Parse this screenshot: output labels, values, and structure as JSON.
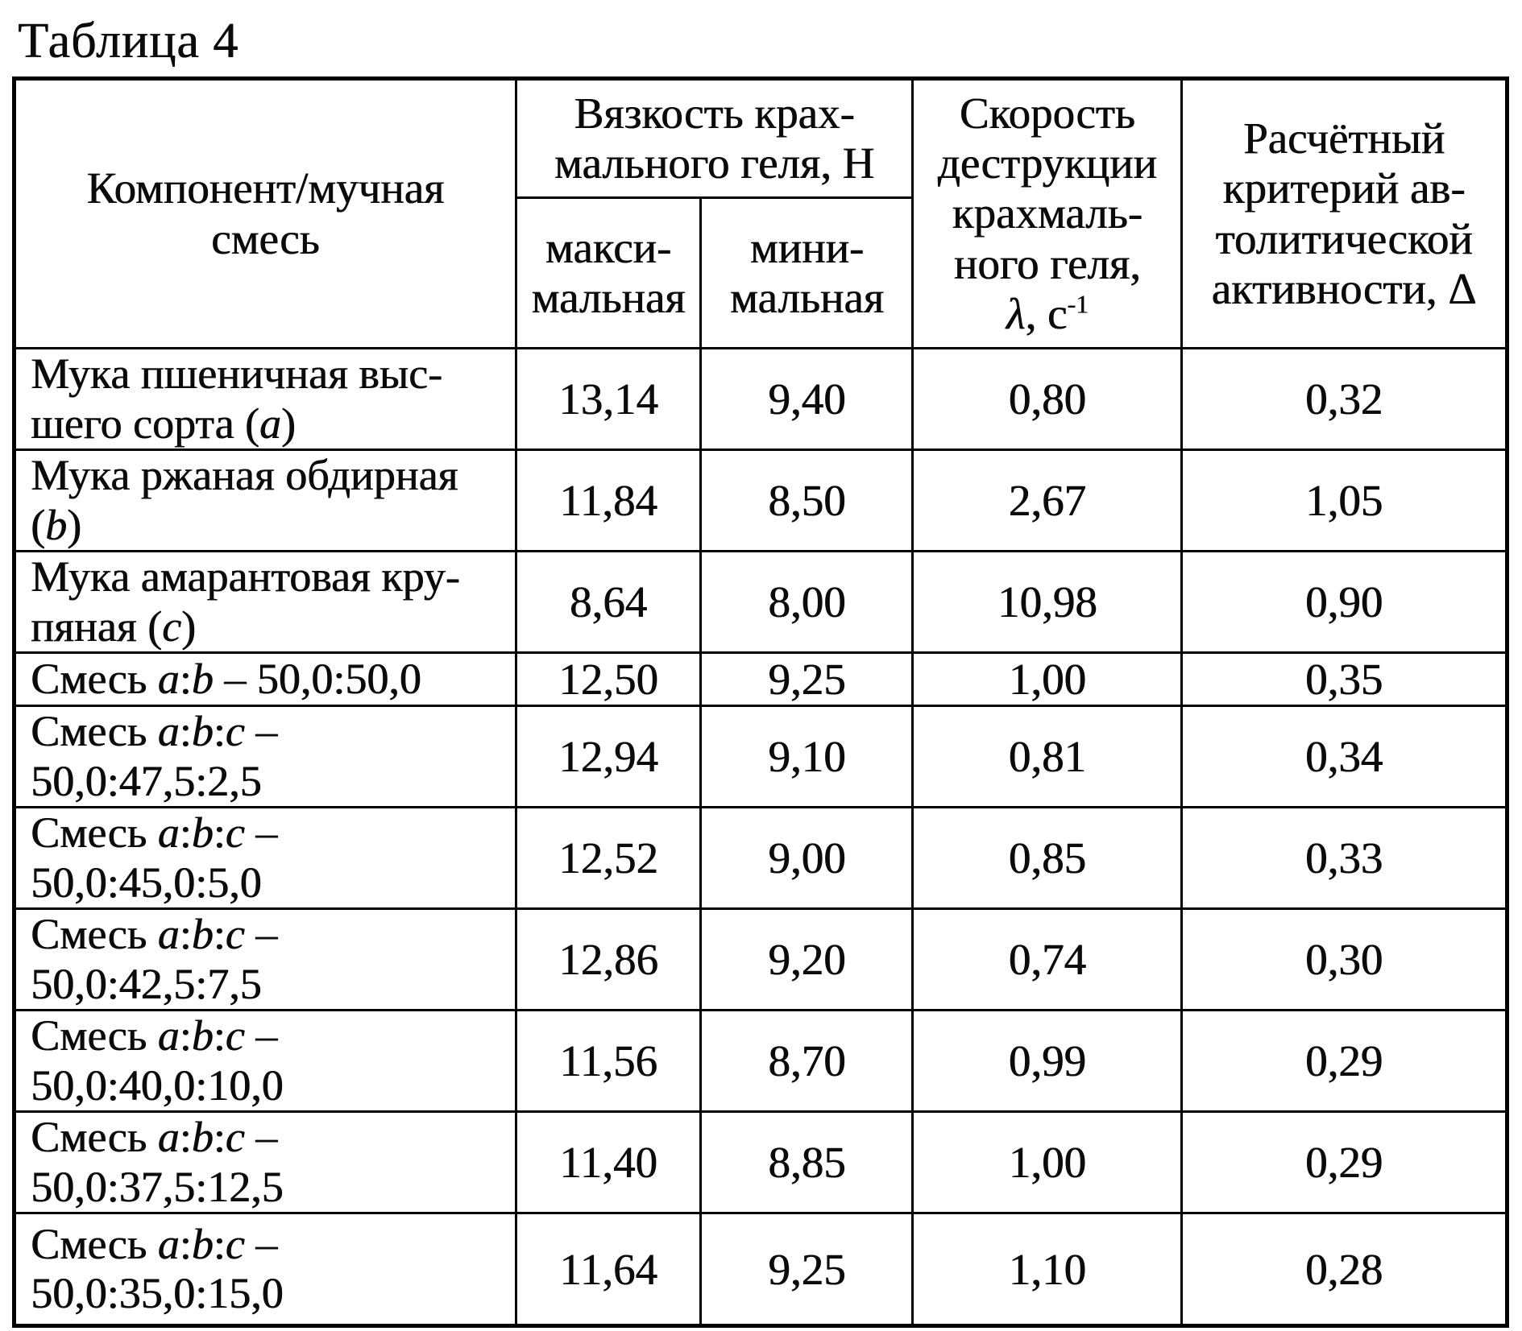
{
  "page_title": "Таблица 4",
  "table": {
    "col_headers": {
      "component": "Компонент/мучная\nсмесь",
      "viscosity_group": "Вязкость крах-\nмального геля, Н",
      "viscosity_max": "макси-\nмальная",
      "viscosity_min": "мини-\nмальная",
      "destruction": [
        {
          "t": "Скорость\nдеструкции\nкрахмаль-\nного геля,\n"
        },
        {
          "t": "λ",
          "i": true
        },
        {
          "t": ", с"
        },
        {
          "t": "-1",
          "sup": true
        }
      ],
      "criterion": "Расчётный\nкритерий ав-\nтолитической\nактивности, Δ"
    },
    "rows": [
      {
        "label": [
          {
            "t": "Мука пшеничная выс-\nшего сорта ("
          },
          {
            "t": "a",
            "i": true
          },
          {
            "t": ")"
          }
        ],
        "visc_max": "13,14",
        "visc_min": "9,40",
        "lambda": "0,80",
        "delta": "0,32"
      },
      {
        "label": [
          {
            "t": "Мука ржаная обдирная\n("
          },
          {
            "t": "b",
            "i": true
          },
          {
            "t": ")"
          }
        ],
        "visc_max": "11,84",
        "visc_min": "8,50",
        "lambda": "2,67",
        "delta": "1,05"
      },
      {
        "label": [
          {
            "t": "Мука амарантовая кру-\nпяная ("
          },
          {
            "t": "c",
            "i": true
          },
          {
            "t": ")"
          }
        ],
        "visc_max": "8,64",
        "visc_min": "8,00",
        "lambda": "10,98",
        "delta": "0,90"
      },
      {
        "label": [
          {
            "t": "Смесь "
          },
          {
            "t": "a",
            "i": true
          },
          {
            "t": ":"
          },
          {
            "t": "b",
            "i": true
          },
          {
            "t": " – 50,0:50,0"
          }
        ],
        "visc_max": "12,50",
        "visc_min": "9,25",
        "lambda": "1,00",
        "delta": "0,35"
      },
      {
        "label": [
          {
            "t": "Смесь "
          },
          {
            "t": "a",
            "i": true
          },
          {
            "t": ":"
          },
          {
            "t": "b",
            "i": true
          },
          {
            "t": ":"
          },
          {
            "t": "c",
            "i": true
          },
          {
            "t": " –\n50,0:47,5:2,5"
          }
        ],
        "visc_max": "12,94",
        "visc_min": "9,10",
        "lambda": "0,81",
        "delta": "0,34"
      },
      {
        "label": [
          {
            "t": "Смесь "
          },
          {
            "t": "a",
            "i": true
          },
          {
            "t": ":"
          },
          {
            "t": "b",
            "i": true
          },
          {
            "t": ":"
          },
          {
            "t": "c",
            "i": true
          },
          {
            "t": " –\n50,0:45,0:5,0"
          }
        ],
        "visc_max": "12,52",
        "visc_min": "9,00",
        "lambda": "0,85",
        "delta": "0,33"
      },
      {
        "label": [
          {
            "t": "Смесь "
          },
          {
            "t": "a",
            "i": true
          },
          {
            "t": ":"
          },
          {
            "t": "b",
            "i": true
          },
          {
            "t": ":"
          },
          {
            "t": "c",
            "i": true
          },
          {
            "t": " –\n50,0:42,5:7,5"
          }
        ],
        "visc_max": "12,86",
        "visc_min": "9,20",
        "lambda": "0,74",
        "delta": "0,30"
      },
      {
        "label": [
          {
            "t": "Смесь "
          },
          {
            "t": "a",
            "i": true
          },
          {
            "t": ":"
          },
          {
            "t": "b",
            "i": true
          },
          {
            "t": ":"
          },
          {
            "t": "c",
            "i": true
          },
          {
            "t": " –\n50,0:40,0:10,0"
          }
        ],
        "visc_max": "11,56",
        "visc_min": "8,70",
        "lambda": "0,99",
        "delta": "0,29"
      },
      {
        "label": [
          {
            "t": "Смесь "
          },
          {
            "t": "a",
            "i": true
          },
          {
            "t": ":"
          },
          {
            "t": "b",
            "i": true
          },
          {
            "t": ":"
          },
          {
            "t": "c",
            "i": true
          },
          {
            "t": " –\n50,0:37,5:12,5"
          }
        ],
        "visc_max": "11,40",
        "visc_min": "8,85",
        "lambda": "1,00",
        "delta": "0,29"
      },
      {
        "label": [
          {
            "t": "Смесь "
          },
          {
            "t": "a",
            "i": true
          },
          {
            "t": ":"
          },
          {
            "t": "b",
            "i": true
          },
          {
            "t": ":"
          },
          {
            "t": "c",
            "i": true
          },
          {
            "t": " –\n50,0:35,0:15,0"
          }
        ],
        "visc_max": "11,64",
        "visc_min": "9,25",
        "lambda": "1,10",
        "delta": "0,28"
      }
    ]
  }
}
